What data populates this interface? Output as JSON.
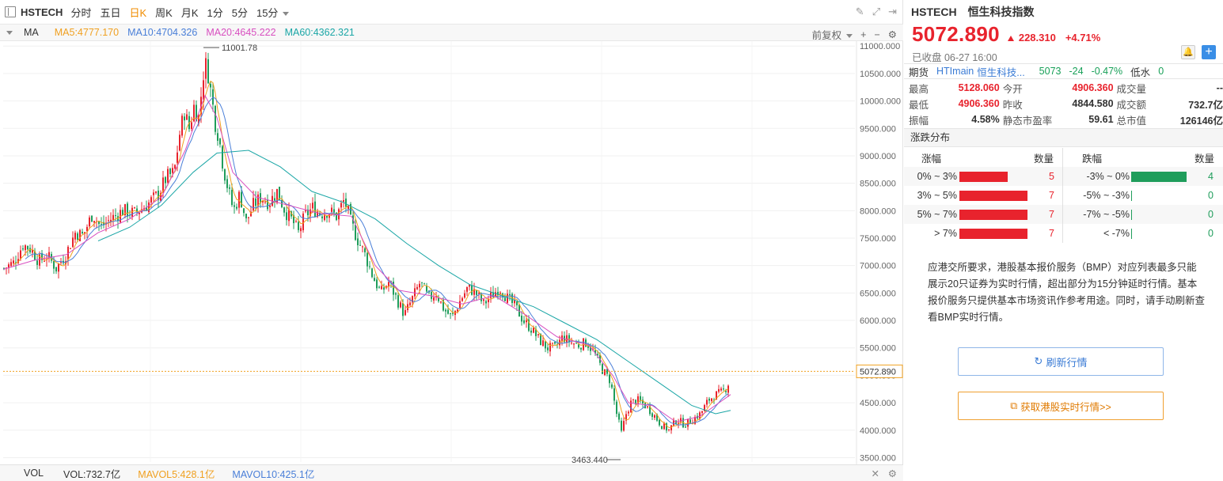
{
  "toolbar": {
    "symbol": "HSTECH",
    "tabs": [
      "分时",
      "五日",
      "日K",
      "周K",
      "月K",
      "1分",
      "5分",
      "15分"
    ],
    "active_tab": 2
  },
  "ma_bar": {
    "label": "MA",
    "ma5": "MA5:4777.170",
    "ma10": "MA10:4704.326",
    "ma20": "MA20:4645.222",
    "ma60": "MA60:4362.321",
    "adjust": "前复权",
    "colors": {
      "ma5": "#f0a020",
      "ma10": "#4a7fd8",
      "ma20": "#d84fc0",
      "ma60": "#1aa6a6"
    }
  },
  "chart_data": {
    "type": "candlestick",
    "y_ticks": [
      "11000.000",
      "10500.000",
      "10000.000",
      "9500.000",
      "9000.000",
      "8500.000",
      "8000.000",
      "7500.000",
      "7000.000",
      "6500.000",
      "6000.000",
      "5500.000",
      "5000.000",
      "4500.000",
      "4000.000",
      "3500.000"
    ],
    "ylim": [
      3420,
      11090
    ],
    "high_label": "11001.78",
    "low_label": "3463.440",
    "last_price_label": "5072.890",
    "last_price": 5072.89,
    "path_points": [
      [
        0,
        6950
      ],
      [
        12,
        7050
      ],
      [
        24,
        7380
      ],
      [
        34,
        7300
      ],
      [
        44,
        7080
      ],
      [
        55,
        7180
      ],
      [
        66,
        6950
      ],
      [
        78,
        7200
      ],
      [
        90,
        7600
      ],
      [
        100,
        7550
      ],
      [
        112,
        7950
      ],
      [
        122,
        7700
      ],
      [
        135,
        7850
      ],
      [
        150,
        8000
      ],
      [
        165,
        7950
      ],
      [
        180,
        8100
      ],
      [
        195,
        8300
      ],
      [
        205,
        8600
      ],
      [
        215,
        8700
      ],
      [
        222,
        9400
      ],
      [
        228,
        9800
      ],
      [
        234,
        9500
      ],
      [
        240,
        9900
      ],
      [
        246,
        9700
      ],
      [
        252,
        10500
      ],
      [
        256,
        10700
      ],
      [
        262,
        10100
      ],
      [
        267,
        9600
      ],
      [
        272,
        9300
      ],
      [
        277,
        8800
      ],
      [
        283,
        8400
      ],
      [
        290,
        8000
      ],
      [
        298,
        8300
      ],
      [
        306,
        7800
      ],
      [
        315,
        8100
      ],
      [
        325,
        8250
      ],
      [
        335,
        8150
      ],
      [
        345,
        8350
      ],
      [
        355,
        8000
      ],
      [
        365,
        7800
      ],
      [
        372,
        7600
      ],
      [
        380,
        7900
      ],
      [
        390,
        8050
      ],
      [
        400,
        7950
      ],
      [
        410,
        8000
      ],
      [
        420,
        7900
      ],
      [
        430,
        8200
      ],
      [
        438,
        7800
      ],
      [
        446,
        7500
      ],
      [
        456,
        7200
      ],
      [
        466,
        6800
      ],
      [
        476,
        6500
      ],
      [
        486,
        6700
      ],
      [
        496,
        6400
      ],
      [
        506,
        6100
      ],
      [
        516,
        6400
      ],
      [
        526,
        6700
      ],
      [
        536,
        6400
      ],
      [
        546,
        6500
      ],
      [
        556,
        6200
      ],
      [
        566,
        6050
      ],
      [
        576,
        6350
      ],
      [
        586,
        6600
      ],
      [
        596,
        6500
      ],
      [
        606,
        6300
      ],
      [
        616,
        6450
      ],
      [
        626,
        6600
      ],
      [
        636,
        6400
      ],
      [
        646,
        6250
      ],
      [
        656,
        6000
      ],
      [
        666,
        5850
      ],
      [
        676,
        5650
      ],
      [
        686,
        5500
      ],
      [
        696,
        5500
      ],
      [
        706,
        5700
      ],
      [
        716,
        5600
      ],
      [
        726,
        5550
      ],
      [
        736,
        5600
      ],
      [
        746,
        5400
      ],
      [
        756,
        5100
      ],
      [
        766,
        4900
      ],
      [
        774,
        4300
      ],
      [
        780,
        3950
      ],
      [
        786,
        4300
      ],
      [
        792,
        4500
      ],
      [
        800,
        4550
      ],
      [
        810,
        4450
      ],
      [
        820,
        4300
      ],
      [
        830,
        4100
      ],
      [
        840,
        4000
      ],
      [
        850,
        4200
      ],
      [
        860,
        4100
      ],
      [
        870,
        4200
      ],
      [
        880,
        4300
      ],
      [
        890,
        4550
      ],
      [
        900,
        4650
      ],
      [
        908,
        4700
      ],
      [
        914,
        4800
      ],
      [
        919,
        5050
      ]
    ],
    "ma20_points": [
      [
        0,
        6930
      ],
      [
        40,
        7100
      ],
      [
        80,
        7200
      ],
      [
        120,
        7600
      ],
      [
        160,
        7850
      ],
      [
        200,
        8250
      ],
      [
        230,
        9100
      ],
      [
        255,
        10100
      ],
      [
        270,
        9700
      ],
      [
        290,
        8700
      ],
      [
        320,
        8250
      ],
      [
        360,
        8100
      ],
      [
        400,
        7950
      ],
      [
        440,
        7900
      ],
      [
        470,
        7000
      ],
      [
        500,
        6550
      ],
      [
        540,
        6450
      ],
      [
        580,
        6300
      ],
      [
        620,
        6450
      ],
      [
        660,
        6100
      ],
      [
        700,
        5700
      ],
      [
        740,
        5550
      ],
      [
        770,
        5000
      ],
      [
        790,
        4500
      ],
      [
        820,
        4450
      ],
      [
        850,
        4150
      ],
      [
        880,
        4250
      ],
      [
        919,
        4650
      ]
    ],
    "ma60_points": [
      [
        120,
        7450
      ],
      [
        160,
        7700
      ],
      [
        200,
        8100
      ],
      [
        240,
        8700
      ],
      [
        270,
        9050
      ],
      [
        310,
        9100
      ],
      [
        350,
        8800
      ],
      [
        390,
        8350
      ],
      [
        430,
        8150
      ],
      [
        470,
        7850
      ],
      [
        510,
        7400
      ],
      [
        550,
        7000
      ],
      [
        590,
        6650
      ],
      [
        630,
        6450
      ],
      [
        670,
        6250
      ],
      [
        710,
        5950
      ],
      [
        750,
        5650
      ],
      [
        790,
        5250
      ],
      [
        830,
        4850
      ],
      [
        870,
        4450
      ],
      [
        900,
        4300
      ],
      [
        919,
        4360
      ]
    ],
    "vol_label": "VOL",
    "vol": "VOL:732.7亿",
    "mavol5": "MAVOL5:428.1亿",
    "mavol10": "MAVOL10:425.1亿"
  },
  "info": {
    "symbol": "HSTECH",
    "name": "恒生科技指数",
    "price": "5072.890",
    "change": "228.310",
    "change_pct": "+4.71%",
    "status": "已收盘 06-27 16:00",
    "futures": {
      "label": "期货",
      "code": "HTImain",
      "name": "恒生科技...",
      "price": "5073",
      "change": "-24",
      "pct": "-0.47%",
      "basis_label": "低水",
      "basis": "0"
    },
    "stats": [
      [
        {
          "l": "最高",
          "v": "5128.060",
          "c": "#e8232d"
        },
        {
          "l": "今开",
          "v": "4906.360",
          "c": "#e8232d"
        },
        {
          "l": "成交量",
          "v": "--",
          "c": "#333"
        }
      ],
      [
        {
          "l": "最低",
          "v": "4906.360",
          "c": "#e8232d"
        },
        {
          "l": "昨收",
          "v": "4844.580",
          "c": "#333"
        },
        {
          "l": "成交额",
          "v": "732.7亿",
          "c": "#333"
        }
      ],
      [
        {
          "l": "振幅",
          "v": "4.58%",
          "c": "#333"
        },
        {
          "l": "静态市盈率",
          "v": "59.61",
          "c": "#333"
        },
        {
          "l": "总市值",
          "v": "126146亿",
          "c": "#333"
        }
      ]
    ],
    "dist_title": "涨跌分布",
    "dist_header": {
      "up": "涨幅",
      "count": "数量",
      "down": "跌幅",
      "count2": "数量"
    },
    "dist_rows": [
      {
        "up": "0% ~ 3%",
        "up_n": "5",
        "up_frac": 0.714,
        "down": "-3% ~  0%",
        "down_n": "4",
        "down_frac": 1.0
      },
      {
        "up": "3% ~ 5%",
        "up_n": "7",
        "up_frac": 1.0,
        "down": "-5% ~ -3%",
        "down_n": "0",
        "down_frac": 0
      },
      {
        "up": "5% ~ 7%",
        "up_n": "7",
        "up_frac": 1.0,
        "down": "-7% ~ -5%",
        "down_n": "0",
        "down_frac": 0
      },
      {
        "up": "> 7%",
        "up_n": "7",
        "up_frac": 1.0,
        "down": "< -7%",
        "down_n": "0",
        "down_frac": 0
      }
    ],
    "notice": "应港交所要求，港股基本报价服务（BMP）对应列表最多只能展示20只证券为实时行情，超出部分为15分钟延时行情。基本报价服务只提供基本市场资讯作参考用途。同时，请手动刷新查看BMP实时行情。",
    "refresh_label": "刷新行情",
    "realtime_label": "获取港股实时行情>>"
  }
}
